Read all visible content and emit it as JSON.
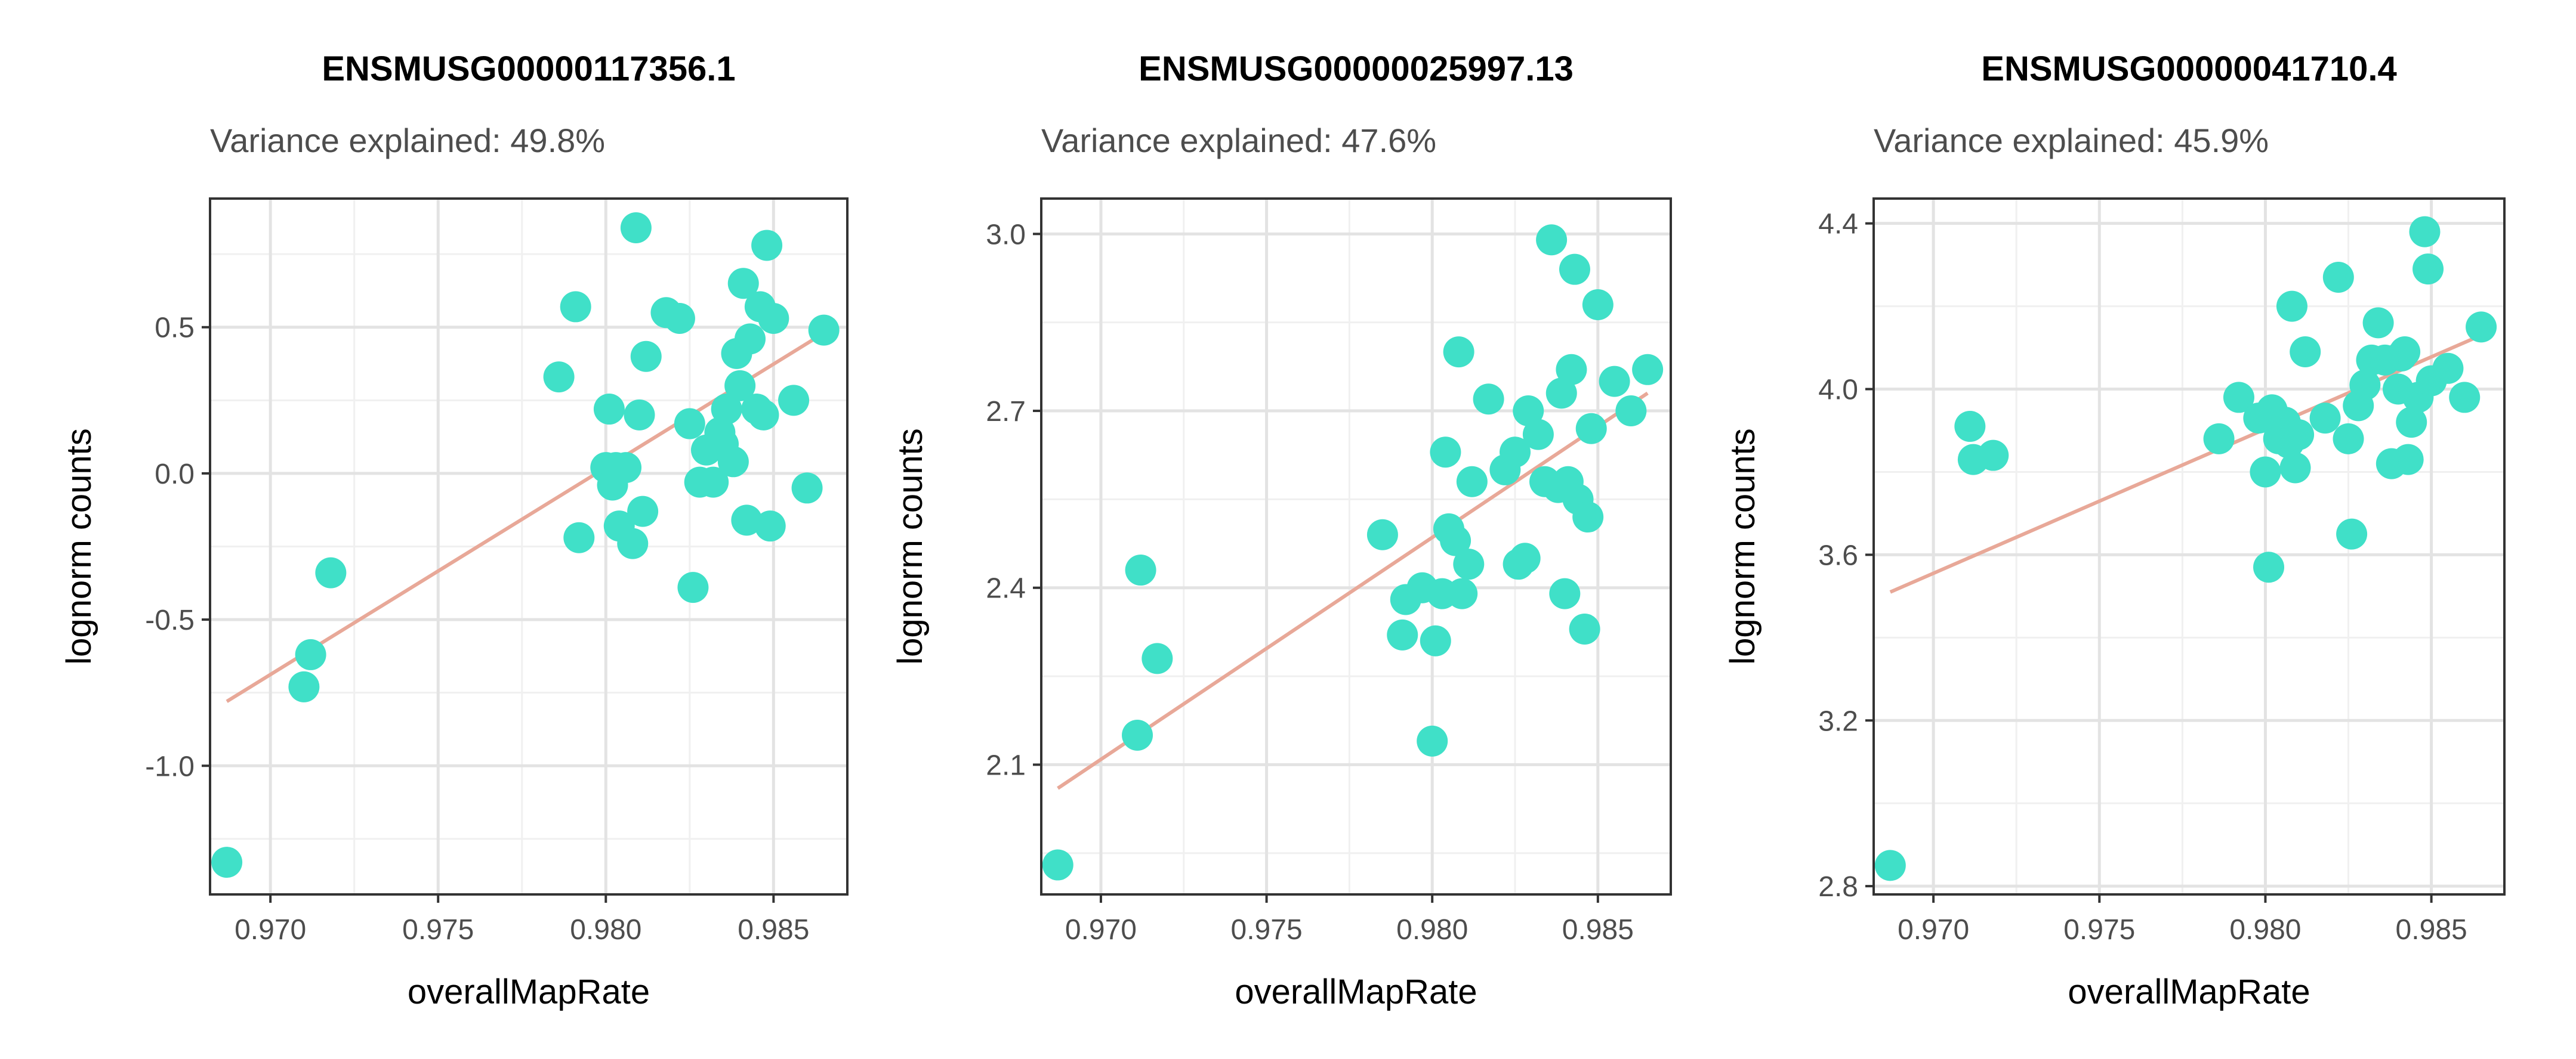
{
  "chart_data": [
    {
      "type": "scatter",
      "title": "ENSMUSG00000117356.1",
      "subtitle": "Variance explained: 49.8%",
      "xlabel": "overallMapRate",
      "ylabel": "lognorm counts",
      "xlim": [
        0.9682,
        0.9872
      ],
      "ylim": [
        -1.44,
        0.94
      ],
      "xticks": [
        0.97,
        0.975,
        0.98,
        0.985
      ],
      "xtick_labels": [
        "0.970",
        "0.975",
        "0.980",
        "0.985"
      ],
      "yticks": [
        -1.0,
        -0.5,
        0.0,
        0.5
      ],
      "ytick_labels": [
        "-1.0",
        "-0.5",
        "0.0",
        "0.5"
      ],
      "grid": true,
      "point_color": "#40E0C8",
      "trend_color": "#E8A898",
      "trend": {
        "x": [
          0.9687,
          0.9865
        ],
        "y": [
          -0.78,
          0.48
        ]
      },
      "points": {
        "x": [
          0.9687,
          0.971,
          0.9712,
          0.9718,
          0.9786,
          0.9791,
          0.9792,
          0.98,
          0.9801,
          0.9802,
          0.9803,
          0.9804,
          0.9806,
          0.9808,
          0.9809,
          0.981,
          0.9811,
          0.9812,
          0.9818,
          0.9822,
          0.9825,
          0.9826,
          0.9828,
          0.983,
          0.9832,
          0.9834,
          0.9835,
          0.9836,
          0.9838,
          0.9839,
          0.984,
          0.9841,
          0.9842,
          0.9843,
          0.9845,
          0.9846,
          0.9847,
          0.9848,
          0.9849,
          0.985,
          0.9856,
          0.986,
          0.9865
        ],
        "y": [
          -1.33,
          -0.73,
          -0.62,
          -0.34,
          0.33,
          0.57,
          -0.22,
          0.02,
          0.22,
          -0.04,
          0.02,
          -0.18,
          0.02,
          -0.24,
          0.84,
          0.2,
          -0.13,
          0.4,
          0.55,
          0.53,
          0.17,
          -0.39,
          -0.03,
          0.08,
          -0.03,
          0.14,
          0.1,
          0.22,
          0.04,
          0.41,
          0.3,
          0.65,
          -0.16,
          0.46,
          0.22,
          0.57,
          0.2,
          0.78,
          -0.18,
          0.53,
          0.25,
          -0.05,
          0.49
        ]
      }
    },
    {
      "type": "scatter",
      "title": "ENSMUSG00000025997.13",
      "subtitle": "Variance explained: 47.6%",
      "xlabel": "overallMapRate",
      "ylabel": "lognorm counts",
      "xlim": [
        0.9682,
        0.9872
      ],
      "ylim": [
        1.88,
        3.06
      ],
      "xticks": [
        0.97,
        0.975,
        0.98,
        0.985
      ],
      "xtick_labels": [
        "0.970",
        "0.975",
        "0.980",
        "0.985"
      ],
      "yticks": [
        2.1,
        2.4,
        2.7,
        3.0
      ],
      "ytick_labels": [
        "2.1",
        "2.4",
        "2.7",
        "3.0"
      ],
      "grid": true,
      "point_color": "#40E0C8",
      "trend_color": "#E8A898",
      "trend": {
        "x": [
          0.9687,
          0.9865
        ],
        "y": [
          2.06,
          2.73
        ]
      },
      "points": {
        "x": [
          0.9687,
          0.9711,
          0.9712,
          0.9717,
          0.9785,
          0.9791,
          0.9792,
          0.9797,
          0.98,
          0.9801,
          0.9803,
          0.9804,
          0.9805,
          0.9807,
          0.9808,
          0.9809,
          0.9811,
          0.9812,
          0.9817,
          0.9822,
          0.9825,
          0.9826,
          0.9828,
          0.9829,
          0.9832,
          0.9834,
          0.9836,
          0.9838,
          0.9839,
          0.984,
          0.9841,
          0.9842,
          0.9843,
          0.9844,
          0.9846,
          0.9847,
          0.9848,
          0.985,
          0.9855,
          0.986,
          0.9865
        ],
        "y": [
          1.93,
          2.15,
          2.43,
          2.28,
          2.49,
          2.32,
          2.38,
          2.4,
          2.14,
          2.31,
          2.39,
          2.63,
          2.5,
          2.48,
          2.8,
          2.39,
          2.44,
          2.58,
          2.72,
          2.6,
          2.63,
          2.44,
          2.45,
          2.7,
          2.66,
          2.58,
          2.99,
          2.57,
          2.73,
          2.39,
          2.58,
          2.77,
          2.94,
          2.55,
          2.33,
          2.52,
          2.67,
          2.88,
          2.75,
          2.7,
          2.77
        ]
      }
    },
    {
      "type": "scatter",
      "title": "ENSMUSG00000041710.4",
      "subtitle": "Variance explained: 45.9%",
      "xlabel": "overallMapRate",
      "ylabel": "lognorm counts",
      "xlim": [
        0.9682,
        0.9872
      ],
      "ylim": [
        2.78,
        4.46
      ],
      "xticks": [
        0.97,
        0.975,
        0.98,
        0.985
      ],
      "xtick_labels": [
        "0.970",
        "0.975",
        "0.980",
        "0.985"
      ],
      "yticks": [
        2.8,
        3.2,
        3.6,
        4.0,
        4.4
      ],
      "ytick_labels": [
        "2.8",
        "3.2",
        "3.6",
        "4.0",
        "4.4"
      ],
      "grid": true,
      "point_color": "#40E0C8",
      "trend_color": "#E8A898",
      "trend": {
        "x": [
          0.9687,
          0.9865
        ],
        "y": [
          3.51,
          4.13
        ]
      },
      "points": {
        "x": [
          0.9687,
          0.9711,
          0.9712,
          0.9718,
          0.9786,
          0.9792,
          0.9798,
          0.98,
          0.9801,
          0.9802,
          0.9804,
          0.9806,
          0.9807,
          0.9808,
          0.9809,
          0.981,
          0.9812,
          0.9818,
          0.9822,
          0.9825,
          0.9826,
          0.9828,
          0.983,
          0.9832,
          0.9834,
          0.9836,
          0.9838,
          0.984,
          0.9841,
          0.9842,
          0.9843,
          0.9844,
          0.9846,
          0.9848,
          0.9849,
          0.985,
          0.9855,
          0.986,
          0.9865
        ],
        "y": [
          2.85,
          3.91,
          3.83,
          3.84,
          3.88,
          3.98,
          3.93,
          3.8,
          3.57,
          3.95,
          3.88,
          3.92,
          3.87,
          4.2,
          3.81,
          3.89,
          4.09,
          3.93,
          4.27,
          3.88,
          3.65,
          3.96,
          4.01,
          4.07,
          4.16,
          4.07,
          3.82,
          4.0,
          4.08,
          4.09,
          3.83,
          3.92,
          3.98,
          4.38,
          4.29,
          4.02,
          4.05,
          3.98,
          4.15
        ]
      }
    }
  ]
}
